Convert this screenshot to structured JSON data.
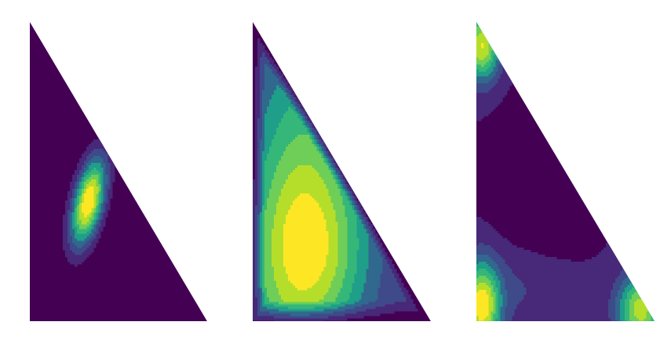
{
  "chart_data": [
    {
      "type": "contour",
      "domain": "right-triangle",
      "colormap": [
        "#440154",
        "#482878",
        "#3e4a89",
        "#31688e",
        "#26828e",
        "#1f9e89",
        "#35b779",
        "#6ece58",
        "#b5de2b",
        "#fde725"
      ],
      "peaks": [
        {
          "u": 0.33,
          "v": 0.4,
          "su": 0.055,
          "sv": 0.11,
          "rot": 0.45,
          "amp": 1.0
        }
      ],
      "base": 0.0,
      "edge_falloff": 0.0,
      "levels": 9
    },
    {
      "type": "contour",
      "domain": "right-triangle",
      "colormap": [
        "#440154",
        "#482878",
        "#3e4a89",
        "#31688e",
        "#26828e",
        "#1f9e89",
        "#35b779",
        "#6ece58",
        "#b5de2b",
        "#fde725"
      ],
      "peaks": [
        {
          "u": 0.25,
          "v": 0.35,
          "su": 0.22,
          "sv": 0.45,
          "rot": 0.15,
          "amp": 0.7
        },
        {
          "u": 0.38,
          "v": 0.22,
          "su": 0.22,
          "sv": 0.2,
          "rot": 0.0,
          "amp": 0.45
        }
      ],
      "base": 0.35,
      "edge_falloff": 0.07,
      "levels": 9
    },
    {
      "type": "contour",
      "domain": "right-triangle",
      "colormap": [
        "#440154",
        "#482878",
        "#3e4a89",
        "#31688e",
        "#26828e",
        "#1f9e89",
        "#35b779",
        "#6ece58",
        "#b5de2b",
        "#fde725"
      ],
      "peaks": [
        {
          "u": 0.03,
          "v": 0.05,
          "su": 0.07,
          "sv": 0.1,
          "rot": 0.0,
          "amp": 0.85
        },
        {
          "u": 0.03,
          "v": 0.92,
          "su": 0.07,
          "sv": 0.08,
          "rot": 0.0,
          "amp": 0.8
        },
        {
          "u": 0.92,
          "v": 0.04,
          "su": 0.09,
          "sv": 0.08,
          "rot": 0.0,
          "amp": 0.75
        },
        {
          "u": 0.25,
          "v": 0.12,
          "su": 0.2,
          "sv": 0.1,
          "rot": 0.0,
          "amp": 0.15
        }
      ],
      "base": 0.18,
      "dip": {
        "u": 0.35,
        "v": 0.42,
        "su": 0.18,
        "sv": 0.22,
        "amp": -0.12
      },
      "edge_falloff": 0.0,
      "levels": 9
    }
  ]
}
